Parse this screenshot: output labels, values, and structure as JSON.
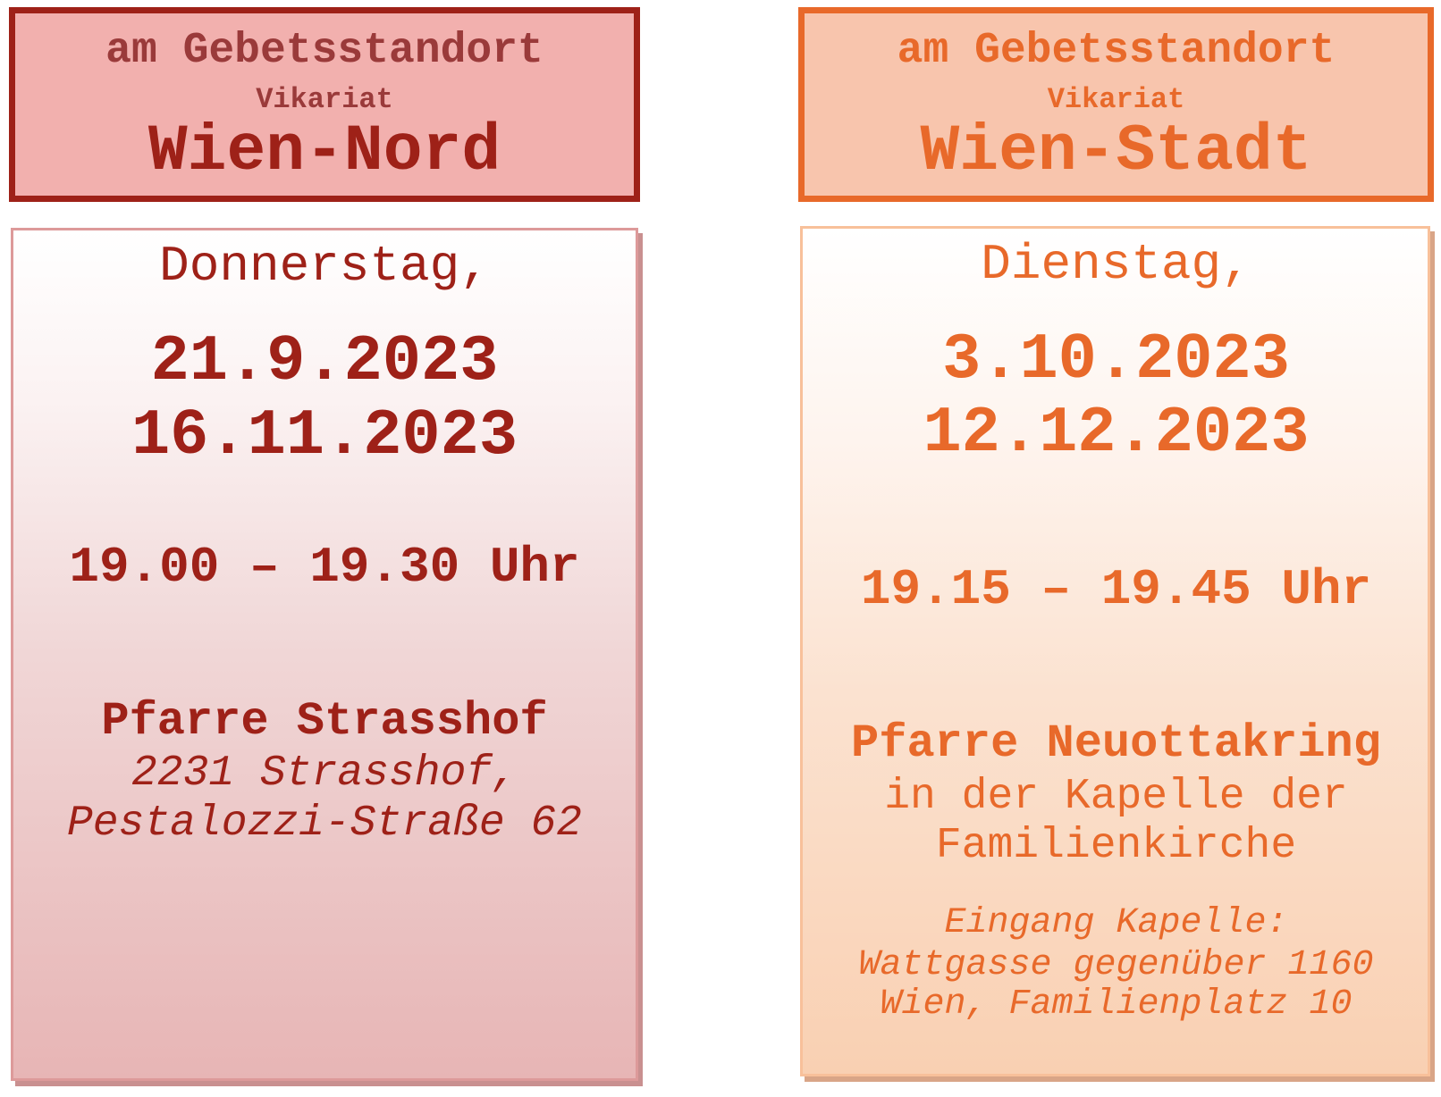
{
  "colors": {
    "nord_accent": "#9e2118",
    "nord_header_bg": "#f2b0ae",
    "stadt_accent": "#e8692a",
    "stadt_header_bg": "#f8c5ad"
  },
  "nord": {
    "header": {
      "line1": "am Gebetsstandort",
      "line2": "Vikariat",
      "title": "Wien-Nord"
    },
    "weekday": "Donnerstag,",
    "dates": [
      "21.9.2023",
      "16.11.2023"
    ],
    "time": "19.00 – 19.30 Uhr",
    "place": "Pfarre Strasshof",
    "address": [
      "2231 Strasshof,",
      "Pestalozzi-Straße 62"
    ]
  },
  "stadt": {
    "header": {
      "line1": "am Gebetsstandort",
      "line2": "Vikariat",
      "title": "Wien-Stadt"
    },
    "weekday": "Dienstag,",
    "dates": [
      "3.10.2023",
      "12.12.2023"
    ],
    "time": "19.15 – 19.45 Uhr",
    "place": "Pfarre Neuottakring",
    "place_detail": [
      "in der Kapelle der",
      "Familienkirche"
    ],
    "address": [
      "Eingang Kapelle:",
      "Wattgasse gegenüber 1160",
      "Wien, Familienplatz 10"
    ]
  }
}
